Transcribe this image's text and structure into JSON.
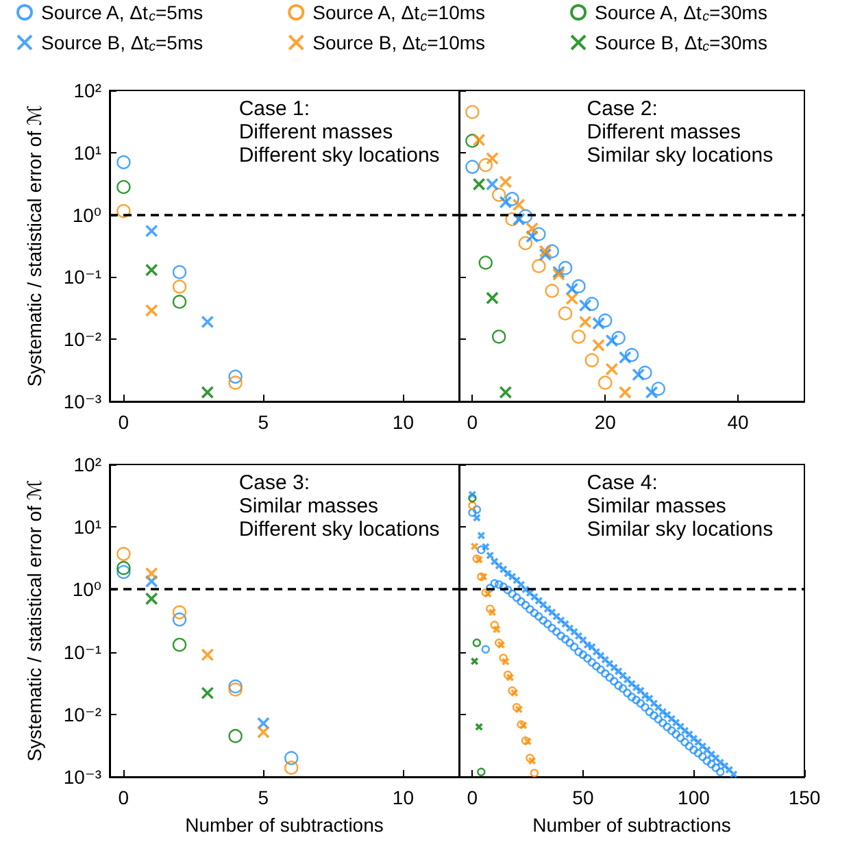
{
  "chart_data": [
    {
      "type": "scatter",
      "ylabel": "Systematic / statistical error of ℳ",
      "annotations": [
        "Case 1:\nDifferent masses\nDifferent sky locations"
      ],
      "legend": "top",
      "log": "y",
      "xlim": [
        -0.5,
        12
      ],
      "xticks": [
        0,
        5,
        10
      ],
      "ylim": [
        0.001,
        100
      ],
      "yticks": [
        {
          "value": 0.001,
          "label": "10⁻³"
        },
        {
          "value": 0.01,
          "label": "10⁻²"
        },
        {
          "value": 0.1,
          "label": "10⁻¹"
        },
        {
          "value": 1,
          "label": "10⁰"
        },
        {
          "value": 10,
          "label": "10¹"
        },
        {
          "value": 100,
          "label": "10²"
        }
      ],
      "ref_lines": [
        {
          "axis": "y",
          "value": 1,
          "color": "#000000",
          "line_style": "dashed"
        }
      ],
      "series": [
        {
          "name": "Source A, Δt$_{c}$=5ms",
          "color": "#1e90ff",
          "marker": "circle",
          "x": [
            0,
            2,
            4
          ],
          "values": [
            7,
            0.12,
            0.0025
          ]
        },
        {
          "name": "Source A, Δt$_{c}$=10ms",
          "color": "#ff8c00",
          "marker": "circle",
          "x": [
            0,
            2,
            4
          ],
          "values": [
            1.15,
            0.07,
            0.002
          ]
        },
        {
          "name": "Source A, Δt$_{c}$=30ms",
          "color": "#008000",
          "marker": "circle",
          "x": [
            0,
            2
          ],
          "values": [
            2.8,
            0.04
          ]
        },
        {
          "name": "Source B, Δt$_{c}$=5ms",
          "color": "#1e90ff",
          "marker": "cross",
          "x": [
            1,
            3
          ],
          "values": [
            0.55,
            0.019
          ]
        },
        {
          "name": "Source B, Δt$_{c}$=10ms",
          "color": "#ff8c00",
          "marker": "cross",
          "x": [
            1
          ],
          "values": [
            0.029
          ]
        },
        {
          "name": "Source B, Δt$_{c}$=30ms",
          "color": "#008000",
          "marker": "cross",
          "x": [
            1,
            3
          ],
          "values": [
            0.13,
            0.0014
          ]
        }
      ]
    },
    {
      "type": "scatter",
      "annotations": [
        "Case 2:\nDifferent masses\nSimilar sky locations"
      ],
      "log": "y",
      "tick_labels": "x",
      "xlim": [
        -2,
        50
      ],
      "xticks": [
        0,
        20,
        40
      ],
      "ylim": [
        0.001,
        100
      ],
      "yticks": [
        0.001,
        0.01,
        0.1,
        1,
        10,
        100
      ],
      "ref_lines": [
        {
          "axis": "y",
          "value": 1,
          "color": "#000000",
          "line_style": "dashed"
        }
      ],
      "series": [
        {
          "color": "#1e90ff",
          "marker": "circle",
          "x": [
            0,
            6,
            8,
            10,
            12,
            14,
            16,
            18,
            20,
            22,
            24,
            26,
            28
          ],
          "values": [
            5.9,
            1.8,
            0.95,
            0.49,
            0.26,
            0.14,
            0.071,
            0.037,
            0.02,
            0.0105,
            0.0056,
            0.0029,
            0.0016
          ]
        },
        {
          "color": "#ff8c00",
          "marker": "circle",
          "x": [
            0,
            2,
            4,
            6,
            8,
            10,
            12,
            14,
            16,
            18,
            20
          ],
          "values": [
            45,
            6.3,
            2.1,
            0.85,
            0.35,
            0.15,
            0.06,
            0.026,
            0.011,
            0.0046,
            0.002
          ]
        },
        {
          "color": "#008000",
          "marker": "circle",
          "x": [
            0,
            2,
            4
          ],
          "values": [
            15.5,
            0.17,
            0.011
          ]
        },
        {
          "color": "#1e90ff",
          "marker": "cross",
          "x": [
            3,
            5,
            7,
            9,
            11,
            13,
            15,
            17,
            19,
            21,
            23,
            25,
            27
          ],
          "values": [
            3.1,
            1.6,
            0.85,
            0.45,
            0.23,
            0.12,
            0.064,
            0.035,
            0.018,
            0.0095,
            0.0051,
            0.0027,
            0.0014
          ]
        },
        {
          "color": "#ff8c00",
          "marker": "cross",
          "x": [
            1,
            3,
            5,
            7,
            9,
            11,
            13,
            15,
            17,
            19,
            21,
            23
          ],
          "values": [
            16,
            8.1,
            3.4,
            1.45,
            0.6,
            0.26,
            0.11,
            0.045,
            0.019,
            0.008,
            0.0033,
            0.0014
          ]
        },
        {
          "color": "#008000",
          "marker": "cross",
          "x": [
            1,
            3,
            5
          ],
          "values": [
            3.1,
            0.046,
            0.0014
          ]
        }
      ]
    },
    {
      "type": "scatter",
      "xlabel": "Number of subtractions",
      "ylabel": "Systematic / statistical error of ℳ",
      "annotations": [
        "Case 3:\nSimilar masses\nDifferent sky locations"
      ],
      "log": "y",
      "xlim": [
        -0.5,
        12
      ],
      "xticks": [
        0,
        5,
        10
      ],
      "ylim": [
        0.001,
        100
      ],
      "yticks": [
        {
          "value": 0.001,
          "label": "10⁻³"
        },
        {
          "value": 0.01,
          "label": "10⁻²"
        },
        {
          "value": 0.1,
          "label": "10⁻¹"
        },
        {
          "value": 1,
          "label": "10⁰"
        },
        {
          "value": 10,
          "label": "10¹"
        },
        {
          "value": 100,
          "label": "10²"
        }
      ],
      "ref_lines": [
        {
          "axis": "y",
          "value": 1,
          "color": "#000000",
          "line_style": "dashed"
        }
      ],
      "series": [
        {
          "color": "#1e90ff",
          "marker": "circle",
          "x": [
            0,
            2,
            4,
            6
          ],
          "values": [
            1.9,
            0.33,
            0.028,
            0.002
          ]
        },
        {
          "color": "#ff8c00",
          "marker": "circle",
          "x": [
            0,
            2,
            4,
            6
          ],
          "values": [
            3.7,
            0.43,
            0.025,
            0.0014
          ]
        },
        {
          "color": "#008000",
          "marker": "circle",
          "x": [
            0,
            2,
            4
          ],
          "values": [
            2.2,
            0.13,
            0.0045
          ]
        },
        {
          "color": "#1e90ff",
          "marker": "cross",
          "x": [
            1,
            5
          ],
          "values": [
            1.35,
            0.0072
          ]
        },
        {
          "color": "#ff8c00",
          "marker": "cross",
          "x": [
            1,
            3,
            5
          ],
          "values": [
            1.8,
            0.09,
            0.0052
          ]
        },
        {
          "color": "#008000",
          "marker": "cross",
          "x": [
            1,
            3
          ],
          "values": [
            0.71,
            0.022
          ]
        }
      ]
    },
    {
      "type": "scatter",
      "xlabel": "Number of subtractions",
      "annotations": [
        "Case 4:\nSimilar masses\nSimilar sky locations"
      ],
      "log": "y",
      "tick_labels": "x",
      "xlim": [
        -6,
        150
      ],
      "xticks": [
        0,
        50,
        100,
        150
      ],
      "ylim": [
        0.001,
        100
      ],
      "yticks": [
        0.001,
        0.01,
        0.1,
        1,
        10,
        100
      ],
      "ref_lines": [
        {
          "axis": "y",
          "value": 1,
          "color": "#000000",
          "line_style": "dashed"
        }
      ],
      "series": [
        {
          "color": "#1e90ff",
          "marker": "circle",
          "x": [
            0,
            2,
            4,
            6,
            8,
            10,
            12,
            14,
            16,
            18,
            20,
            22,
            24,
            26,
            28,
            30,
            32,
            34,
            36,
            38,
            40,
            42,
            44,
            46,
            48,
            50,
            52,
            54,
            56,
            58,
            60,
            62,
            64,
            66,
            68,
            70,
            72,
            74,
            76,
            78,
            80,
            82,
            84,
            86,
            88,
            90,
            92,
            94,
            96,
            98,
            100,
            102,
            104,
            106,
            108,
            110,
            112
          ],
          "values": [
            17,
            19,
            4.3,
            0.11,
            1.05,
            1.25,
            1.2,
            1.1,
            0.98,
            0.85,
            0.74,
            0.64,
            0.56,
            0.48,
            0.42,
            0.37,
            0.32,
            0.28,
            0.24,
            0.21,
            0.18,
            0.16,
            0.14,
            0.12,
            0.1,
            0.09,
            0.079,
            0.068,
            0.059,
            0.052,
            0.045,
            0.039,
            0.034,
            0.029,
            0.026,
            0.022,
            0.019,
            0.017,
            0.015,
            0.013,
            0.011,
            0.0096,
            0.0084,
            0.0073,
            0.0063,
            0.0055,
            0.0048,
            0.0042,
            0.0036,
            0.0031,
            0.0027,
            0.0024,
            0.0021,
            0.0018,
            0.0016,
            0.0014,
            0.0012
          ]
        },
        {
          "color": "#ff8c00",
          "marker": "circle",
          "x": [
            0,
            2,
            4,
            6,
            8,
            10,
            12,
            14,
            16,
            18,
            20,
            22,
            24,
            26,
            28
          ],
          "values": [
            22,
            3.1,
            1.6,
            0.89,
            0.49,
            0.27,
            0.14,
            0.08,
            0.043,
            0.024,
            0.013,
            0.0069,
            0.0038,
            0.002,
            0.00115
          ]
        },
        {
          "color": "#008000",
          "marker": "circle",
          "x": [
            0,
            2,
            4
          ],
          "values": [
            29,
            0.14,
            0.0012
          ]
        },
        {
          "color": "#1e90ff",
          "marker": "cross",
          "x": [
            0,
            2,
            4,
            6,
            8,
            10,
            12,
            14,
            16,
            18,
            20,
            22,
            24,
            26,
            28,
            30,
            32,
            34,
            36,
            38,
            40,
            42,
            44,
            46,
            48,
            50,
            52,
            54,
            56,
            58,
            60,
            62,
            64,
            66,
            68,
            70,
            72,
            74,
            76,
            78,
            80,
            82,
            84,
            86,
            88,
            90,
            92,
            94,
            96,
            98,
            100,
            102,
            104,
            106,
            108,
            110,
            112,
            114,
            116,
            118
          ],
          "values": [
            33,
            14,
            7.3,
            4.8,
            3.5,
            2.8,
            2.4,
            2.1,
            1.8,
            1.6,
            1.4,
            1.2,
            1.0,
            0.88,
            0.76,
            0.66,
            0.57,
            0.49,
            0.43,
            0.37,
            0.32,
            0.28,
            0.24,
            0.21,
            0.18,
            0.155,
            0.13,
            0.12,
            0.1,
            0.087,
            0.075,
            0.065,
            0.056,
            0.049,
            0.042,
            0.036,
            0.031,
            0.027,
            0.024,
            0.02,
            0.018,
            0.015,
            0.013,
            0.011,
            0.0098,
            0.0085,
            0.0074,
            0.0064,
            0.0055,
            0.0048,
            0.0041,
            0.0036,
            0.0031,
            0.0027,
            0.0023,
            0.002,
            0.0017,
            0.0015,
            0.0013,
            0.0011
          ]
        },
        {
          "color": "#ff8c00",
          "marker": "cross",
          "x": [
            1,
            3,
            5,
            7,
            9,
            11,
            13,
            15,
            17,
            19,
            21,
            23,
            25,
            27
          ],
          "values": [
            4.9,
            3.0,
            1.6,
            0.85,
            0.43,
            0.23,
            0.13,
            0.07,
            0.039,
            0.022,
            0.012,
            0.0067,
            0.0037,
            0.0018
          ]
        },
        {
          "color": "#008000",
          "marker": "cross",
          "x": [
            1,
            3
          ],
          "values": [
            0.071,
            0.0063
          ]
        }
      ]
    }
  ]
}
